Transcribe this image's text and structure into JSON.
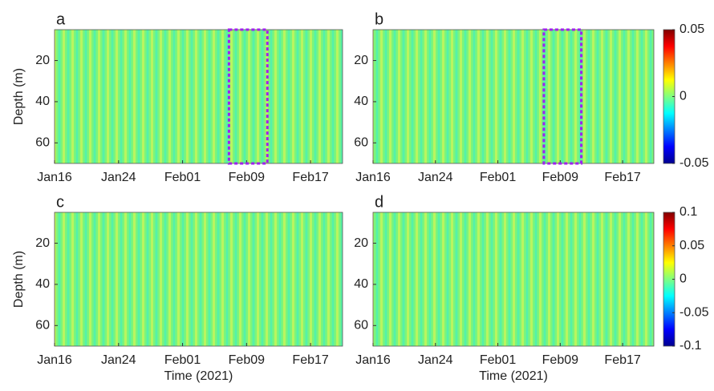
{
  "chart_data": [
    {
      "type": "heatmap",
      "panel_label": "a",
      "ylabel": "Depth (m)",
      "y_reversed": true,
      "xlim": [
        16,
        52
      ],
      "xticks": [
        {
          "value": 16,
          "label": "Jan16"
        },
        {
          "value": 24,
          "label": "Jan24"
        },
        {
          "value": 32,
          "label": "Feb01"
        },
        {
          "value": 40,
          "label": "Feb09"
        },
        {
          "value": 48,
          "label": "Feb17"
        }
      ],
      "ylim": [
        5,
        70
      ],
      "yticks": [
        20,
        40,
        60
      ],
      "highlight": {
        "x": [
          37.8,
          42.6
        ],
        "y": [
          5,
          70
        ],
        "color": "#a020f0"
      }
    },
    {
      "type": "heatmap",
      "panel_label": "b",
      "y_reversed": true,
      "xlim": [
        16,
        52
      ],
      "xticks": [
        {
          "value": 16,
          "label": "Jan16"
        },
        {
          "value": 24,
          "label": "Jan24"
        },
        {
          "value": 32,
          "label": "Feb01"
        },
        {
          "value": 40,
          "label": "Feb09"
        },
        {
          "value": 48,
          "label": "Feb17"
        }
      ],
      "ylim": [
        5,
        70
      ],
      "yticks": [
        20,
        40,
        60
      ],
      "highlight": {
        "x": [
          37.9,
          42.7
        ],
        "y": [
          5,
          70
        ],
        "color": "#a020f0"
      },
      "clim": [
        -0.05,
        0.05
      ],
      "cticks": [
        -0.05,
        0,
        0.05
      ]
    },
    {
      "type": "heatmap",
      "panel_label": "c",
      "ylabel": "Depth (m)",
      "xlabel": "Time (2021)",
      "y_reversed": true,
      "xlim": [
        16,
        52
      ],
      "xticks": [
        {
          "value": 16,
          "label": "Jan16"
        },
        {
          "value": 24,
          "label": "Jan24"
        },
        {
          "value": 32,
          "label": "Feb01"
        },
        {
          "value": 40,
          "label": "Feb09"
        },
        {
          "value": 48,
          "label": "Feb17"
        }
      ],
      "ylim": [
        5,
        70
      ],
      "yticks": [
        20,
        40,
        60
      ]
    },
    {
      "type": "heatmap",
      "panel_label": "d",
      "xlabel": "Time (2021)",
      "y_reversed": true,
      "xlim": [
        16,
        52
      ],
      "xticks": [
        {
          "value": 16,
          "label": "Jan16"
        },
        {
          "value": 24,
          "label": "Jan24"
        },
        {
          "value": 32,
          "label": "Feb01"
        },
        {
          "value": 40,
          "label": "Feb09"
        },
        {
          "value": 48,
          "label": "Feb17"
        }
      ],
      "ylim": [
        5,
        70
      ],
      "yticks": [
        20,
        40,
        60
      ],
      "clim": [
        -0.1,
        0.1
      ],
      "cticks": [
        -0.1,
        -0.05,
        0,
        0.05,
        0.1
      ]
    }
  ]
}
